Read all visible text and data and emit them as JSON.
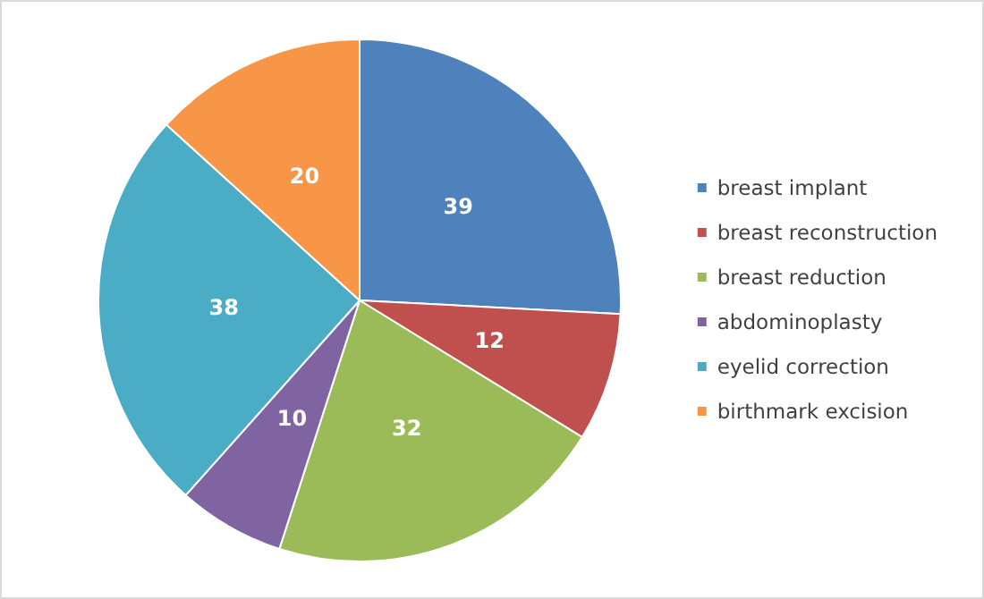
{
  "chart_data": {
    "type": "pie",
    "categories": [
      "breast implant",
      "breast reconstruction",
      "breast reduction",
      "abdominoplasty",
      "eyelid correction",
      "birthmark excision"
    ],
    "values": [
      39,
      12,
      32,
      10,
      38,
      20
    ],
    "colors": [
      "#4f81bd",
      "#c0504d",
      "#9bbb59",
      "#8064a2",
      "#4bacc6",
      "#f79646"
    ],
    "data_labels": true,
    "legend": "right"
  }
}
